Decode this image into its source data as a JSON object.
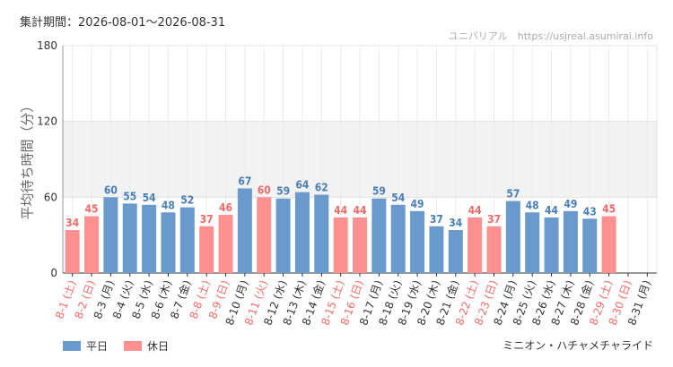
{
  "period_label": "集計期間：2026-08-01〜2026-08-31",
  "site_label": "ユニバリアル　https://usjreal.asumirai.info",
  "attraction_name": "ミニオン・ハチャメチャライド",
  "legend": {
    "weekday": "平日",
    "holiday": "休日"
  },
  "colors": {
    "weekday": "#6a9acb",
    "holiday": "#ff9090",
    "weekday_label": "#4a7fb5",
    "holiday_label": "#ee6a6a"
  },
  "chart_data": {
    "type": "bar",
    "ylabel": "平均待ち時間（分）",
    "ylim": [
      0,
      180
    ],
    "yticks": [
      0,
      60,
      120,
      180
    ],
    "shaded_band": [
      60,
      120
    ],
    "categories": [
      "8-1 (土)",
      "8-2 (日)",
      "8-3 (月)",
      "8-4 (火)",
      "8-5 (水)",
      "8-6 (木)",
      "8-7 (金)",
      "8-8 (土)",
      "8-9 (日)",
      "8-10 (月)",
      "8-11 (火)",
      "8-12 (水)",
      "8-13 (木)",
      "8-14 (金)",
      "8-15 (土)",
      "8-16 (日)",
      "8-17 (月)",
      "8-18 (火)",
      "8-19 (水)",
      "8-20 (木)",
      "8-21 (金)",
      "8-22 (土)",
      "8-23 (日)",
      "8-24 (月)",
      "8-25 (火)",
      "8-26 (水)",
      "8-27 (木)",
      "8-28 (金)",
      "8-29 (土)",
      "8-30 (日)",
      "8-31 (月)"
    ],
    "values": [
      34,
      45,
      60,
      55,
      54,
      48,
      52,
      37,
      46,
      67,
      60,
      59,
      64,
      62,
      44,
      44,
      59,
      54,
      49,
      37,
      34,
      44,
      37,
      57,
      48,
      44,
      49,
      43,
      45,
      null,
      null
    ],
    "day_type": [
      "holiday",
      "holiday",
      "weekday",
      "weekday",
      "weekday",
      "weekday",
      "weekday",
      "holiday",
      "holiday",
      "weekday",
      "holiday",
      "weekday",
      "weekday",
      "weekday",
      "holiday",
      "holiday",
      "weekday",
      "weekday",
      "weekday",
      "weekday",
      "weekday",
      "holiday",
      "holiday",
      "weekday",
      "weekday",
      "weekday",
      "weekday",
      "weekday",
      "holiday",
      "holiday",
      "weekday"
    ]
  }
}
